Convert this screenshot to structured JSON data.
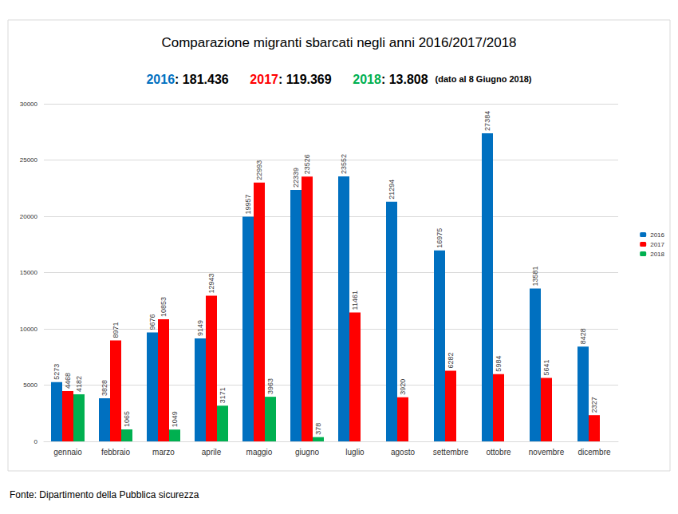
{
  "chart_data": {
    "type": "bar",
    "title": "Comparazione migranti sbarcati negli anni 2016/2017/2018",
    "subtitle": [
      {
        "text": "2016",
        "color": "#0070c0"
      },
      {
        "text": ": 181.436"
      },
      {
        "text": "2017",
        "color": "#ff0000"
      },
      {
        "text": ": 119.369"
      },
      {
        "text": "2018",
        "color": "#00b050"
      },
      {
        "text": ": 13.808"
      }
    ],
    "note": "(dato al 8 Giugno 2018)",
    "source": "Fonte: Dipartimento della Pubblica sicurezza",
    "categories": [
      "gennaio",
      "febbraio",
      "marzo",
      "aprile",
      "maggio",
      "giugno",
      "luglio",
      "agosto",
      "settembre",
      "ottobre",
      "novembre",
      "dicembre"
    ],
    "series": [
      {
        "name": "2016",
        "color": "#0070c0",
        "values": [
          5273,
          3828,
          9676,
          9149,
          19957,
          22339,
          23552,
          21294,
          16975,
          27384,
          13581,
          8428
        ]
      },
      {
        "name": "2017",
        "color": "#ff0000",
        "values": [
          4468,
          8971,
          10853,
          12943,
          22993,
          23526,
          11461,
          3920,
          6282,
          5984,
          5641,
          2327
        ]
      },
      {
        "name": "2018",
        "color": "#00b050",
        "values": [
          4182,
          1065,
          1049,
          3171,
          3963,
          378,
          null,
          null,
          null,
          null,
          null,
          null
        ]
      }
    ],
    "ylim": [
      0,
      30000
    ],
    "yticks": [
      0,
      5000,
      10000,
      15000,
      20000,
      25000,
      30000
    ],
    "grid": true,
    "legend": "right",
    "data_labels": true
  }
}
